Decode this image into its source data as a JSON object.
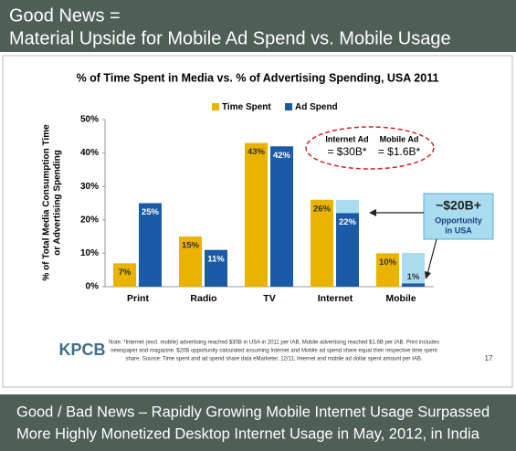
{
  "header": {
    "line1": "Good News =",
    "line2": "Material Upside for Mobile Ad Spend vs. Mobile Usage"
  },
  "chart_data": {
    "type": "bar",
    "title": "% of Time Spent in Media vs. % of Advertising Spending, USA 2011",
    "y_label": [
      "% of Total Media Consumption Time",
      "or Advertising Spending"
    ],
    "categories": [
      "Print",
      "Radio",
      "TV",
      "Internet",
      "Mobile"
    ],
    "series": [
      {
        "name": "Time Spent",
        "color": "#eab300",
        "values": [
          7,
          15,
          43,
          26,
          10
        ],
        "value_labels": [
          "7%",
          "15%",
          "43%",
          "26%",
          "10%"
        ]
      },
      {
        "name": "Ad Spend",
        "color": "#1a5aa6",
        "values": [
          25,
          11,
          42,
          22,
          1
        ],
        "value_labels": [
          "25%",
          "11%",
          "42%",
          "22%",
          "1%"
        ]
      }
    ],
    "ylim": [
      0,
      50
    ],
    "yticks": [
      {
        "value": 0,
        "label": "0%"
      },
      {
        "value": 10,
        "label": "10%"
      },
      {
        "value": 20,
        "label": "20%"
      },
      {
        "value": 30,
        "label": "30%"
      },
      {
        "value": 40,
        "label": "40%"
      },
      {
        "value": 50,
        "label": "50%"
      }
    ],
    "annotations": {
      "internet_ad": "Internet Ad",
      "internet_ad_value": "= $30B*",
      "mobile_ad": "Mobile Ad",
      "mobile_ad_value": "= $1.6B*",
      "opportunity": "~$20B+",
      "opportunity_line1": "Opportunity",
      "opportunity_line2": "in USA"
    }
  },
  "note": [
    "Note: *Internet (excl. mobile) advertising reached $30B in USA in 2011 per IAB, Mobile advertising reached $1.6B per IAB. Print includes",
    "newspaper and magazine. $20B opportunity calculated assuming Internet and Mobile ad spend share equal their respective time spent",
    "share. Source: Time spent and ad spend share data eMarketer, 12/11, Internet and mobile ad dollar spent amount per IAB."
  ],
  "logo": "KPCB",
  "page_number": "17",
  "footer": {
    "line1": "Good / Bad News – Rapidly Growing Mobile Internet Usage Surpassed",
    "line2": "More Highly Monetized Desktop Internet Usage in May, 2012, in India"
  }
}
